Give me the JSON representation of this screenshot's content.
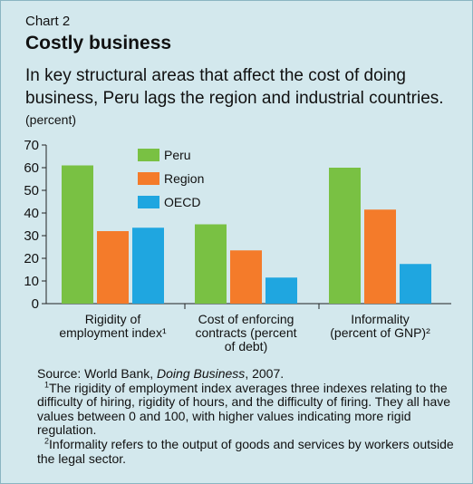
{
  "header": {
    "label": "Chart 2",
    "title": "Costly business",
    "subtitle": "In key structural areas that affect the cost of doing business, Peru lags the region and industrial countries."
  },
  "chart_data": {
    "type": "bar",
    "unit_label": "(percent)",
    "categories": [
      [
        "Rigidity of",
        "employment index¹"
      ],
      [
        "Cost of enforcing",
        "contracts (percent",
        "of debt)"
      ],
      [
        "Informality",
        "(percent of GNP)²"
      ]
    ],
    "series": [
      {
        "name": "Peru",
        "color": "#79c143",
        "values": [
          61,
          35,
          60
        ]
      },
      {
        "name": "Region",
        "color": "#f47b2a",
        "values": [
          32,
          23.5,
          41.5
        ]
      },
      {
        "name": "OECD",
        "color": "#1fa6e0",
        "values": [
          33.5,
          11.5,
          17.5
        ]
      }
    ],
    "ylim": [
      0,
      70
    ],
    "yticks": [
      0,
      10,
      20,
      30,
      40,
      50,
      60,
      70
    ],
    "grid": false,
    "legend": "top-left"
  },
  "notes": {
    "source_prefix": "Source: World Bank, ",
    "source_title": "Doing Business",
    "source_suffix": ", 2007.",
    "footnote1_mark": "1",
    "footnote1": "The rigidity of employment index averages three indexes relating to the difficulty of hiring, rigidity of hours, and the difficulty of firing. They all have values between 0 and 100, with higher values indicating more rigid regulation.",
    "footnote2_mark": "2",
    "footnote2": "Informality refers to the output of goods and services by workers outside the legal sector."
  }
}
